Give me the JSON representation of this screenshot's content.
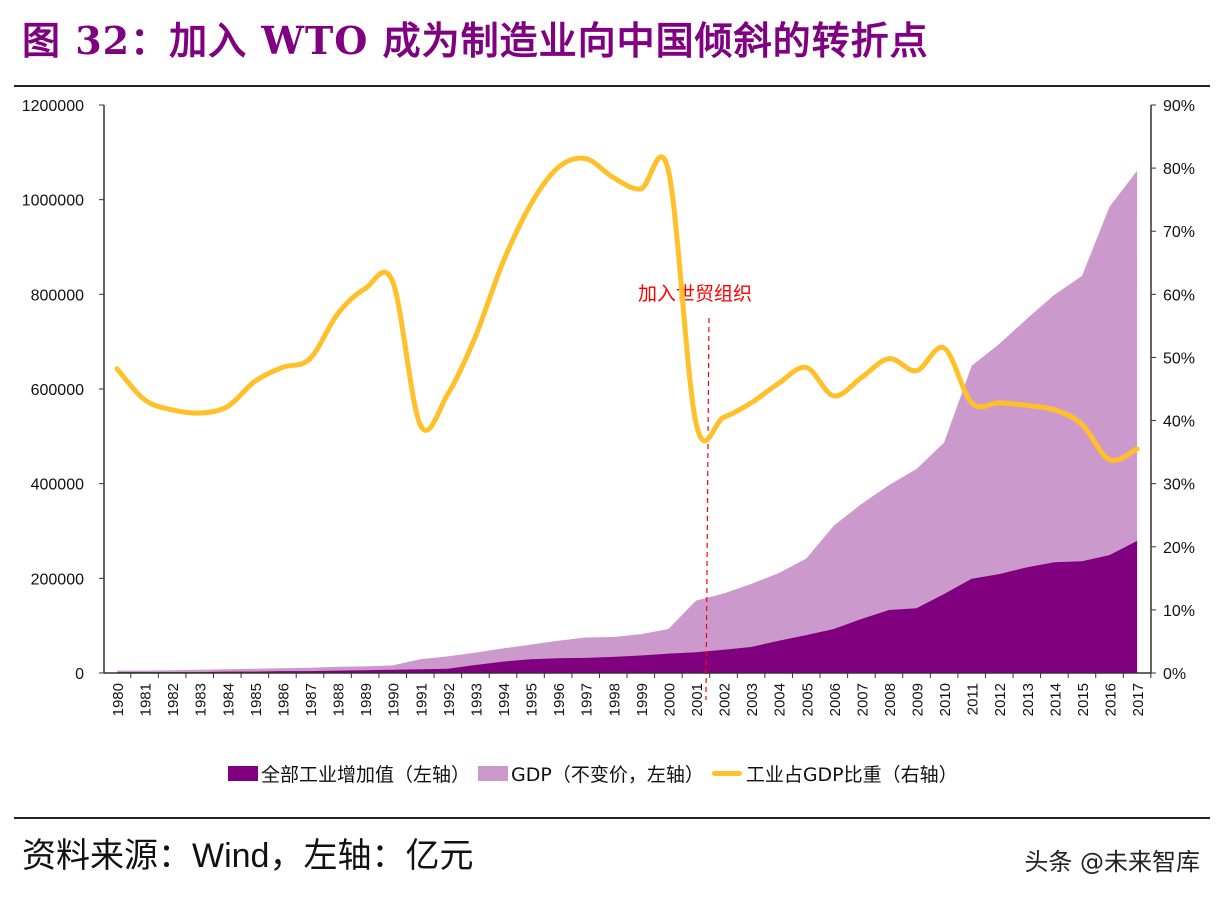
{
  "title": "图 32：加入 WTO 成为制造业向中国倾斜的转折点",
  "source": {
    "prefix": "资料来源：",
    "text": "Wind，左轴：亿元"
  },
  "watermark": "头条 @未来智库",
  "chart_data": {
    "type": "area+line",
    "title": "",
    "x": [
      1980,
      1981,
      1982,
      1983,
      1984,
      1985,
      1986,
      1987,
      1988,
      1989,
      1990,
      1991,
      1992,
      1993,
      1994,
      1995,
      1996,
      1997,
      1998,
      1999,
      2000,
      2001,
      2002,
      2003,
      2004,
      2005,
      2006,
      2007,
      2008,
      2009,
      2010,
      2011,
      2012,
      2013,
      2014,
      2015,
      2016,
      2017
    ],
    "y_left": {
      "min": 0,
      "max": 1200000,
      "ticks": [
        "0",
        "200000",
        "400000",
        "600000",
        "800000",
        "1000000",
        "1200000"
      ]
    },
    "y_right": {
      "min": 0,
      "max": 90,
      "ticks": [
        "0%",
        "10%",
        "20%",
        "30%",
        "40%",
        "50%",
        "60%",
        "70%",
        "80%",
        "90%"
      ]
    },
    "series": [
      {
        "name": "GDP（不变价，左轴）",
        "type": "area",
        "axis": "left",
        "color": "#cc99cc",
        "values": [
          5000,
          5000,
          6000,
          7000,
          8000,
          9000,
          10000,
          11000,
          13000,
          14000,
          16000,
          29000,
          35000,
          43000,
          52000,
          60000,
          68000,
          75000,
          76000,
          82000,
          93000,
          153000,
          168000,
          188000,
          211000,
          242000,
          311000,
          357000,
          397000,
          431000,
          487000,
          649000,
          695000,
          748000,
          799000,
          839000,
          985000,
          1061000
        ]
      },
      {
        "name": "全部工业增加值（左轴）",
        "type": "area",
        "axis": "left",
        "color": "#800080",
        "values": [
          2000,
          2000,
          2000,
          2000,
          3000,
          3000,
          4000,
          4000,
          5000,
          6000,
          7000,
          8000,
          9000,
          17000,
          24000,
          29000,
          31000,
          32000,
          34000,
          37000,
          41000,
          44000,
          49000,
          55000,
          68000,
          80000,
          93000,
          114000,
          133000,
          137000,
          167000,
          199000,
          209000,
          223000,
          234000,
          236000,
          249000,
          279000
        ]
      },
      {
        "name": "工业占GDP比重（右轴）",
        "type": "line",
        "axis": "right",
        "color": "#ffc02a",
        "values": [
          48.2,
          43.3,
          41.7,
          41.2,
          42.2,
          46.2,
          48.4,
          49.8,
          56.9,
          60.9,
          62.0,
          39.3,
          44.2,
          53.3,
          65.1,
          74.2,
          80.1,
          81.5,
          78.5,
          76.7,
          79.6,
          39.6,
          40.5,
          42.8,
          45.9,
          48.4,
          43.9,
          46.8,
          49.8,
          47.9,
          51.5,
          42.8,
          42.8,
          42.4,
          41.7,
          39.4,
          33.8,
          35.5
        ]
      }
    ],
    "annotation": {
      "text": "加入世贸组织",
      "x": 2001,
      "color": "#ff0000"
    },
    "legend_position": "bottom",
    "grid": false
  },
  "legend": [
    "全部工业增加值（左轴）",
    "GDP（不变价，左轴）",
    "工业占GDP比重（右轴）"
  ]
}
